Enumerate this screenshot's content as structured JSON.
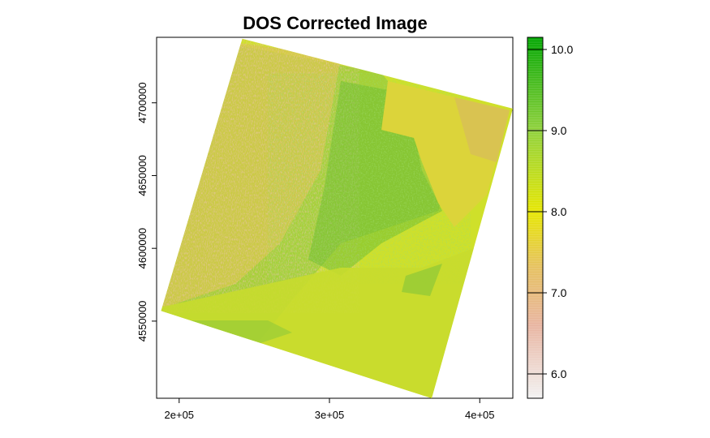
{
  "chart_data": {
    "type": "heatmap",
    "title": "DOS Corrected Image",
    "xlabel": "",
    "ylabel": "",
    "xlim": [
      185000,
      422000
    ],
    "ylim": [
      4497000,
      4745000
    ],
    "x_ticks": [
      {
        "value": 200000,
        "label": "2e+05"
      },
      {
        "value": 300000,
        "label": "3e+05"
      },
      {
        "value": 400000,
        "label": "4e+05"
      }
    ],
    "y_ticks": [
      {
        "value": 4550000,
        "label": "4550000"
      },
      {
        "value": 4600000,
        "label": "4600000"
      },
      {
        "value": 4650000,
        "label": "4650000"
      },
      {
        "value": 4700000,
        "label": "4700000"
      }
    ],
    "raster_extent_corners": [
      {
        "x": 242000,
        "y": 4744000
      },
      {
        "x": 422000,
        "y": 4696000
      },
      {
        "x": 368000,
        "y": 4497000
      },
      {
        "x": 188000,
        "y": 4557000
      }
    ],
    "colorbar": {
      "min": 5.7,
      "max": 10.15,
      "ticks": [
        {
          "value": 6.0,
          "label": "6.0"
        },
        {
          "value": 7.0,
          "label": "7.0"
        },
        {
          "value": 8.0,
          "label": "8.0"
        },
        {
          "value": 9.0,
          "label": "9.0"
        },
        {
          "value": 10.0,
          "label": "10.0"
        }
      ],
      "stops": [
        {
          "value": 5.7,
          "color": "#f2f2f2"
        },
        {
          "value": 6.6,
          "color": "#e8b4a0"
        },
        {
          "value": 7.3,
          "color": "#e6c060"
        },
        {
          "value": 8.0,
          "color": "#e6e600"
        },
        {
          "value": 9.0,
          "color": "#8fd13a"
        },
        {
          "value": 10.15,
          "color": "#00a600"
        }
      ]
    },
    "grid": false,
    "legend_position": "right"
  }
}
